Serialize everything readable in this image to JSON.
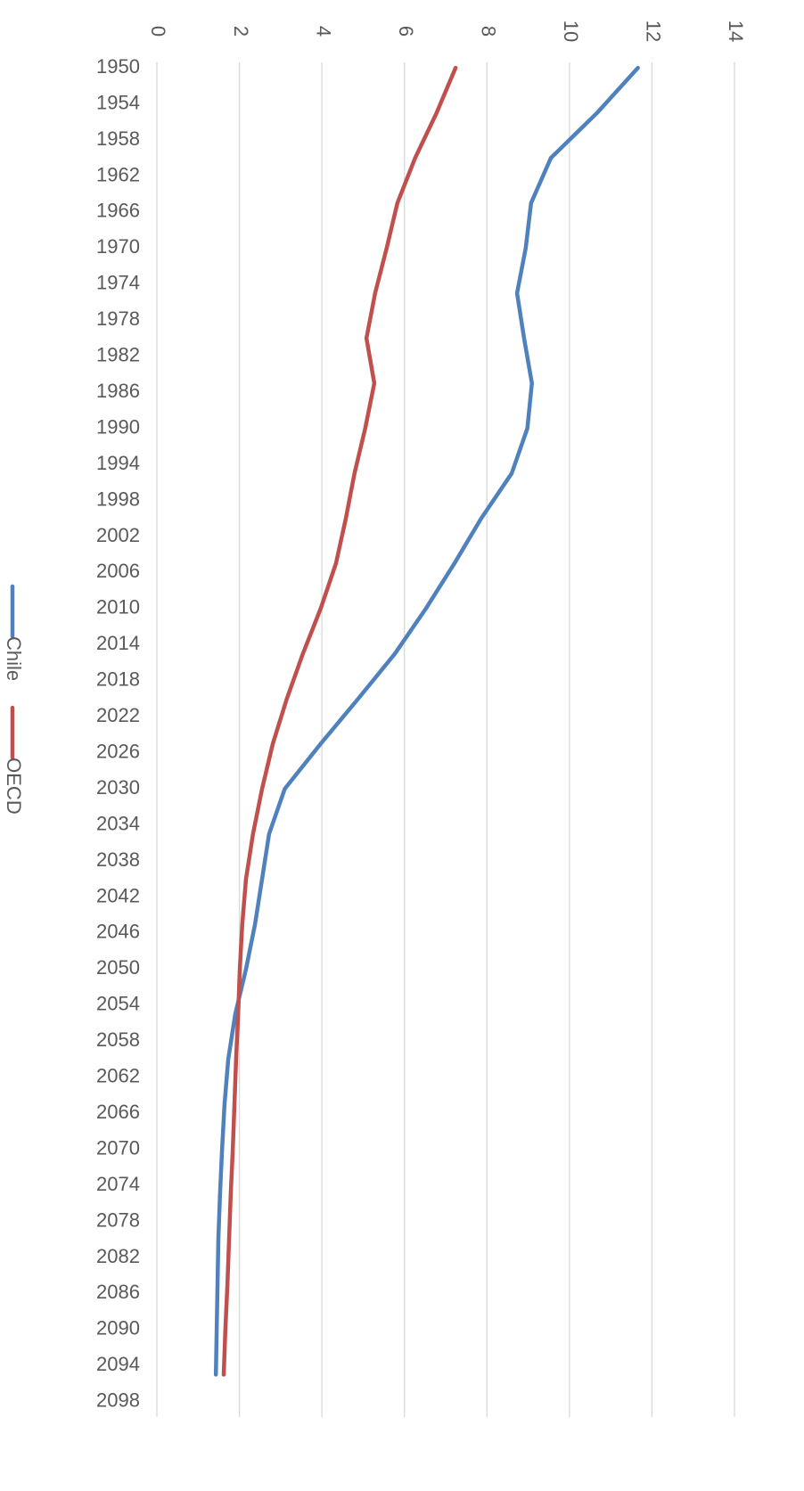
{
  "chart_data": {
    "type": "line",
    "x": [
      1950,
      1955,
      1960,
      1965,
      1970,
      1975,
      1980,
      1985,
      1990,
      1995,
      2000,
      2005,
      2010,
      2015,
      2020,
      2025,
      2030,
      2035,
      2040,
      2045,
      2050,
      2055,
      2060,
      2065,
      2070,
      2075,
      2080,
      2085,
      2090,
      2095
    ],
    "series": [
      {
        "name": "Chile",
        "color": "#4f81bd",
        "values": [
          11.66,
          10.67,
          9.55,
          9.07,
          8.94,
          8.73,
          8.9,
          9.09,
          8.98,
          8.6,
          7.86,
          7.21,
          6.52,
          5.77,
          4.88,
          3.97,
          3.1,
          2.72,
          2.55,
          2.38,
          2.16,
          1.9,
          1.73,
          1.64,
          1.58,
          1.53,
          1.49,
          1.47,
          1.45,
          1.43
        ]
      },
      {
        "name": "OECD",
        "color": "#c0504d",
        "values": [
          7.24,
          6.78,
          6.26,
          5.83,
          5.57,
          5.29,
          5.08,
          5.27,
          5.05,
          4.79,
          4.58,
          4.34,
          3.97,
          3.54,
          3.15,
          2.81,
          2.55,
          2.33,
          2.16,
          2.07,
          2.01,
          1.97,
          1.92,
          1.88,
          1.84,
          1.79,
          1.75,
          1.71,
          1.66,
          1.62
        ]
      }
    ],
    "xlim": [
      1949,
      2100
    ],
    "xticks": [
      1950,
      1954,
      1958,
      1962,
      1966,
      1970,
      1974,
      1978,
      1982,
      1986,
      1990,
      1994,
      1998,
      2002,
      2006,
      2010,
      2014,
      2018,
      2022,
      2026,
      2030,
      2034,
      2038,
      2042,
      2046,
      2050,
      2054,
      2058,
      2062,
      2066,
      2070,
      2074,
      2078,
      2082,
      2086,
      2090,
      2094,
      2098
    ],
    "ylim": [
      0,
      14
    ],
    "yticks": [
      0,
      2,
      4,
      6,
      8,
      10,
      12,
      14
    ],
    "grid": true
  }
}
